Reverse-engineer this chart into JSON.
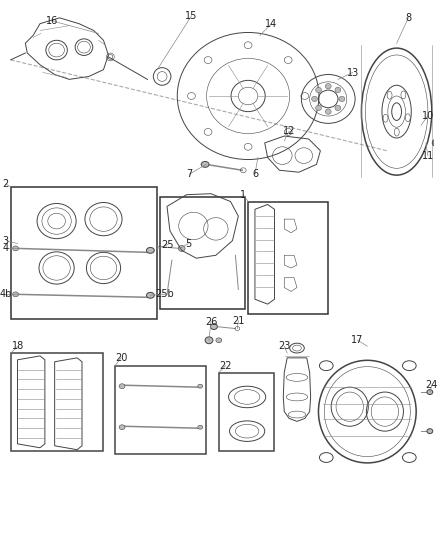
{
  "bg_color": "#ffffff",
  "line_color": "#444444",
  "gray": "#888888",
  "light_gray": "#bbbbbb",
  "figsize": [
    4.38,
    5.33
  ],
  "dpi": 100,
  "label_fs": 7,
  "label_color": "#222222",
  "lead_color": "#888888"
}
